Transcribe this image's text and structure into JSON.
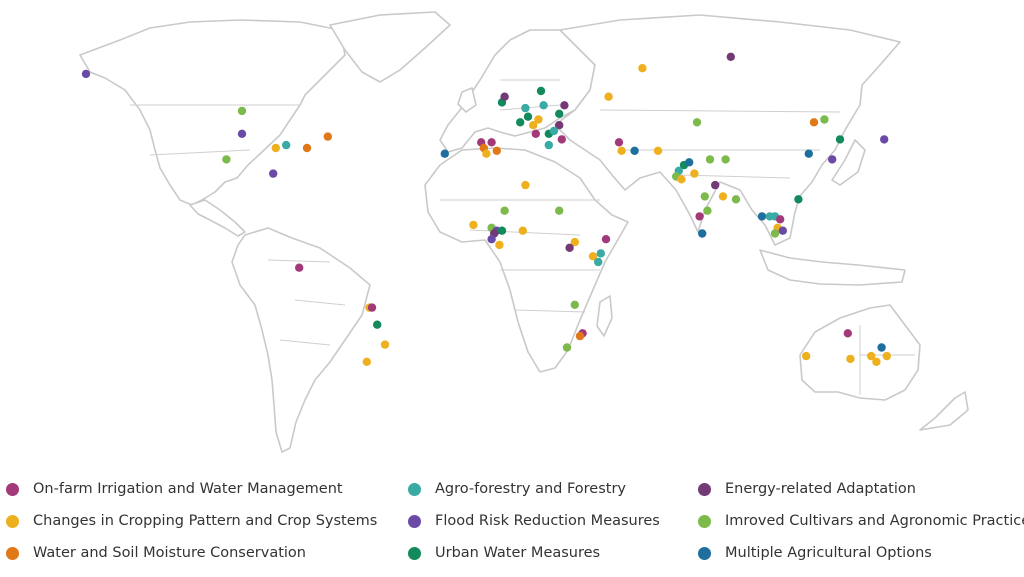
{
  "legend": [
    {
      "key": "irrigation",
      "label": "On-farm Irrigation and Water Management",
      "color": "#a23a7a"
    },
    {
      "key": "cropping",
      "label": "Changes in Cropping Pattern and Crop Systems",
      "color": "#efb020"
    },
    {
      "key": "soil",
      "label": "Water and Soil Moisture Conservation",
      "color": "#e07818"
    },
    {
      "key": "forestry",
      "label": "Agro-forestry and Forestry",
      "color": "#3aaaa4"
    },
    {
      "key": "flood",
      "label": "Flood Risk Reduction Measures",
      "color": "#6a4aa6"
    },
    {
      "key": "urban",
      "label": "Urban Water Measures",
      "color": "#128a5c"
    },
    {
      "key": "energy",
      "label": "Energy-related Adaptation",
      "color": "#733a76"
    },
    {
      "key": "cultivars",
      "label": "Imroved Cultivars and Agronomic Practices",
      "color": "#7cba4c"
    },
    {
      "key": "multiple",
      "label": "Multiple Agricultural Options",
      "color": "#1e6e9e"
    }
  ],
  "points": [
    {
      "lon": -160,
      "lat": 66,
      "cat": "flood"
    },
    {
      "lon": -100,
      "lat": 53,
      "cat": "cultivars"
    },
    {
      "lon": -100,
      "lat": 45,
      "cat": "flood"
    },
    {
      "lon": -87,
      "lat": 40,
      "cat": "cropping"
    },
    {
      "lon": -83,
      "lat": 41,
      "cat": "forestry"
    },
    {
      "lon": -106,
      "lat": 36,
      "cat": "cultivars"
    },
    {
      "lon": -75,
      "lat": 40,
      "cat": "soil"
    },
    {
      "lon": -67,
      "lat": 44,
      "cat": "soil"
    },
    {
      "lon": -88,
      "lat": 31,
      "cat": "flood"
    },
    {
      "lon": -78,
      "lat": -2,
      "cat": "irrigation"
    },
    {
      "lon": -51,
      "lat": -16,
      "cat": "cropping"
    },
    {
      "lon": -50,
      "lat": -16,
      "cat": "irrigation"
    },
    {
      "lon": -48,
      "lat": -22,
      "cat": "urban"
    },
    {
      "lon": -45,
      "lat": -29,
      "cat": "cropping"
    },
    {
      "lon": -52,
      "lat": -35,
      "cat": "cropping"
    },
    {
      "lon": -22,
      "lat": 38,
      "cat": "multiple"
    },
    {
      "lon": -8,
      "lat": 42,
      "cat": "irrigation"
    },
    {
      "lon": -7,
      "lat": 40,
      "cat": "soil"
    },
    {
      "lon": -4,
      "lat": 42,
      "cat": "irrigation"
    },
    {
      "lon": -2,
      "lat": 39,
      "cat": "soil"
    },
    {
      "lon": -6,
      "lat": 38,
      "cat": "cropping"
    },
    {
      "lon": 0,
      "lat": 56,
      "cat": "urban"
    },
    {
      "lon": 1,
      "lat": 58,
      "cat": "energy"
    },
    {
      "lon": 9,
      "lat": 54,
      "cat": "forestry"
    },
    {
      "lon": 10,
      "lat": 51,
      "cat": "urban"
    },
    {
      "lon": 14,
      "lat": 50,
      "cat": "cropping"
    },
    {
      "lon": 12,
      "lat": 48,
      "cat": "cropping"
    },
    {
      "lon": 7,
      "lat": 49,
      "cat": "urban"
    },
    {
      "lon": 15,
      "lat": 60,
      "cat": "urban"
    },
    {
      "lon": 16,
      "lat": 55,
      "cat": "forestry"
    },
    {
      "lon": 22,
      "lat": 52,
      "cat": "urban"
    },
    {
      "lon": 24,
      "lat": 55,
      "cat": "energy"
    },
    {
      "lon": 22,
      "lat": 48,
      "cat": "energy"
    },
    {
      "lon": 18,
      "lat": 45,
      "cat": "urban"
    },
    {
      "lon": 20,
      "lat": 46,
      "cat": "forestry"
    },
    {
      "lon": 23,
      "lat": 43,
      "cat": "irrigation"
    },
    {
      "lon": 18,
      "lat": 41,
      "cat": "forestry"
    },
    {
      "lon": 13,
      "lat": 45,
      "cat": "irrigation"
    },
    {
      "lon": 54,
      "lat": 68,
      "cat": "cropping"
    },
    {
      "lon": 88,
      "lat": 72,
      "cat": "energy"
    },
    {
      "lon": 41,
      "lat": 58,
      "cat": "cropping"
    },
    {
      "lon": 45,
      "lat": 42,
      "cat": "irrigation"
    },
    {
      "lon": 46,
      "lat": 39,
      "cat": "cropping"
    },
    {
      "lon": 51,
      "lat": 39,
      "cat": "multiple"
    },
    {
      "lon": 60,
      "lat": 39,
      "cat": "cropping"
    },
    {
      "lon": 75,
      "lat": 49,
      "cat": "cultivars"
    },
    {
      "lon": 80,
      "lat": 36,
      "cat": "cultivars"
    },
    {
      "lon": 86,
      "lat": 36,
      "cat": "cultivars"
    },
    {
      "lon": 70,
      "lat": 34,
      "cat": "urban"
    },
    {
      "lon": 72,
      "lat": 35,
      "cat": "multiple"
    },
    {
      "lon": 68,
      "lat": 32,
      "cat": "forestry"
    },
    {
      "lon": 67,
      "lat": 30,
      "cat": "cultivars"
    },
    {
      "lon": 69,
      "lat": 29,
      "cat": "cropping"
    },
    {
      "lon": 74,
      "lat": 31,
      "cat": "cropping"
    },
    {
      "lon": 82,
      "lat": 27,
      "cat": "energy"
    },
    {
      "lon": 78,
      "lat": 23,
      "cat": "cultivars"
    },
    {
      "lon": 85,
      "lat": 23,
      "cat": "cropping"
    },
    {
      "lon": 90,
      "lat": 22,
      "cat": "cultivars"
    },
    {
      "lon": 79,
      "lat": 18,
      "cat": "cultivars"
    },
    {
      "lon": 76,
      "lat": 16,
      "cat": "irrigation"
    },
    {
      "lon": 77,
      "lat": 10,
      "cat": "multiple"
    },
    {
      "lon": 120,
      "lat": 49,
      "cat": "soil"
    },
    {
      "lon": 124,
      "lat": 50,
      "cat": "cultivars"
    },
    {
      "lon": 130,
      "lat": 43,
      "cat": "urban"
    },
    {
      "lon": 147,
      "lat": 43,
      "cat": "flood"
    },
    {
      "lon": 118,
      "lat": 38,
      "cat": "multiple"
    },
    {
      "lon": 127,
      "lat": 36,
      "cat": "flood"
    },
    {
      "lon": 114,
      "lat": 22,
      "cat": "urban"
    },
    {
      "lon": 100,
      "lat": 16,
      "cat": "multiple"
    },
    {
      "lon": 103,
      "lat": 16,
      "cat": "forestry"
    },
    {
      "lon": 105,
      "lat": 16,
      "cat": "forestry"
    },
    {
      "lon": 107,
      "lat": 15,
      "cat": "irrigation"
    },
    {
      "lon": 106,
      "lat": 12,
      "cat": "cropping"
    },
    {
      "lon": 105,
      "lat": 10,
      "cat": "cultivars"
    },
    {
      "lon": 108,
      "lat": 11,
      "cat": "flood"
    },
    {
      "lon": 9,
      "lat": 27,
      "cat": "cropping"
    },
    {
      "lon": -11,
      "lat": 13,
      "cat": "cropping"
    },
    {
      "lon": -4,
      "lat": 12,
      "cat": "cultivars"
    },
    {
      "lon": -2,
      "lat": 11,
      "cat": "flood"
    },
    {
      "lon": 0,
      "lat": 11,
      "cat": "urban"
    },
    {
      "lon": -3,
      "lat": 10,
      "cat": "energy"
    },
    {
      "lon": 1,
      "lat": 18,
      "cat": "cultivars"
    },
    {
      "lon": -4,
      "lat": 8,
      "cat": "flood"
    },
    {
      "lon": -1,
      "lat": 6,
      "cat": "cropping"
    },
    {
      "lon": 8,
      "lat": 11,
      "cat": "cropping"
    },
    {
      "lon": 22,
      "lat": 18,
      "cat": "cultivars"
    },
    {
      "lon": 28,
      "lat": 7,
      "cat": "cropping"
    },
    {
      "lon": 26,
      "lat": 5,
      "cat": "energy"
    },
    {
      "lon": 40,
      "lat": 8,
      "cat": "irrigation"
    },
    {
      "lon": 35,
      "lat": 2,
      "cat": "cropping"
    },
    {
      "lon": 38,
      "lat": 3,
      "cat": "forestry"
    },
    {
      "lon": 37,
      "lat": 0,
      "cat": "forestry"
    },
    {
      "lon": 28,
      "lat": -15,
      "cat": "cultivars"
    },
    {
      "lon": 31,
      "lat": -25,
      "cat": "irrigation"
    },
    {
      "lon": 30,
      "lat": -26,
      "cat": "soil"
    },
    {
      "lon": 25,
      "lat": -30,
      "cat": "cultivars"
    },
    {
      "lon": 133,
      "lat": -25,
      "cat": "irrigation"
    },
    {
      "lon": 117,
      "lat": -33,
      "cat": "cropping"
    },
    {
      "lon": 134,
      "lat": -34,
      "cat": "cropping"
    },
    {
      "lon": 142,
      "lat": -33,
      "cat": "cropping"
    },
    {
      "lon": 146,
      "lat": -30,
      "cat": "multiple"
    },
    {
      "lon": 144,
      "lat": -35,
      "cat": "cropping"
    },
    {
      "lon": 148,
      "lat": -33,
      "cat": "cropping"
    }
  ]
}
